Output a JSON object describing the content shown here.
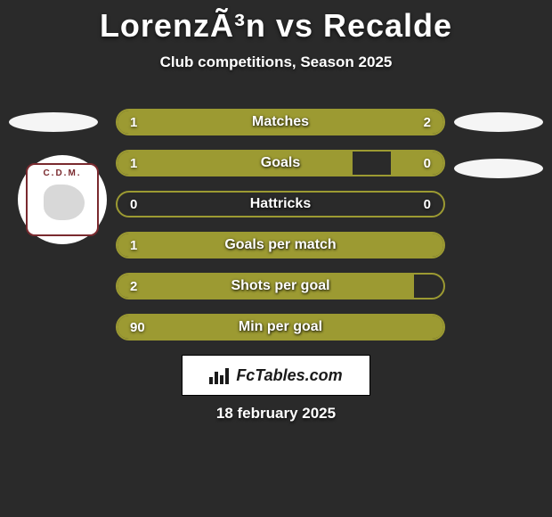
{
  "title": "LorenzÃ³n vs Recalde",
  "subtitle": "Club competitions, Season 2025",
  "club_badge_text": "C.D.M.",
  "colors": {
    "background": "#2a2a2a",
    "bar_fill": "#9c9a32",
    "bar_border": "#9c9a32",
    "text": "#ffffff",
    "avatar_bg": "#f5f5f5",
    "badge_border": "#7a2a2f",
    "brand_bg": "#ffffff",
    "brand_text": "#1a1a1a"
  },
  "typography": {
    "title_fontsize": 36,
    "subtitle_fontsize": 17,
    "bar_label_fontsize": 16,
    "bar_value_fontsize": 15,
    "brand_fontsize": 18,
    "date_fontsize": 17
  },
  "bars": [
    {
      "label": "Matches",
      "left_val": "1",
      "right_val": "2",
      "left_pct": 33,
      "right_pct": 67
    },
    {
      "label": "Goals",
      "left_val": "1",
      "right_val": "0",
      "left_pct": 72,
      "right_pct": 16
    },
    {
      "label": "Hattricks",
      "left_val": "0",
      "right_val": "0",
      "left_pct": 0,
      "right_pct": 0
    },
    {
      "label": "Goals per match",
      "left_val": "1",
      "right_val": "",
      "left_pct": 100,
      "right_pct": 0
    },
    {
      "label": "Shots per goal",
      "left_val": "2",
      "right_val": "",
      "left_pct": 91,
      "right_pct": 0
    },
    {
      "label": "Min per goal",
      "left_val": "90",
      "right_val": "",
      "left_pct": 100,
      "right_pct": 0
    }
  ],
  "brand": "FcTables.com",
  "date": "18 february 2025"
}
